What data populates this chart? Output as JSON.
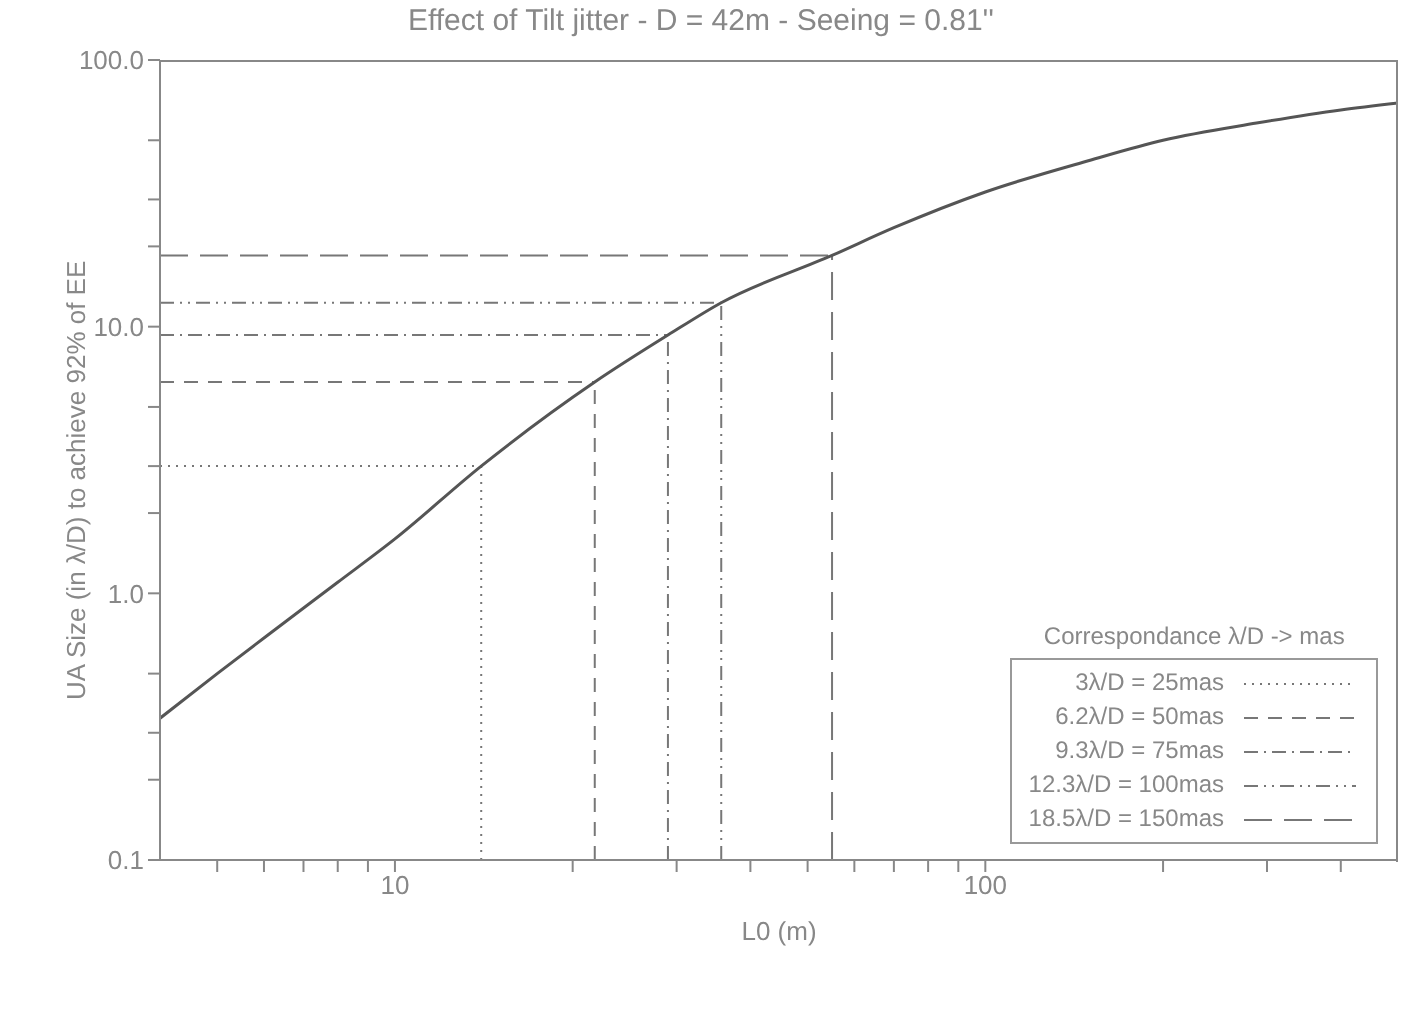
{
  "chart_data": {
    "type": "line",
    "title": "Effect of Tilt jitter - D = 42m - Seeing = 0.81''",
    "xlabel": "L0 (m)",
    "ylabel": "UA Size (in λ/D) to achieve 92% of EE",
    "log": "xy",
    "grid": false,
    "marker": "none",
    "line_style": "solid",
    "legend": "bottom right",
    "legend_title": "Correspondance λ/D -> mas",
    "x": [
      4,
      5,
      6,
      8,
      10,
      14,
      21.8,
      29,
      35.7,
      55,
      70,
      100,
      150,
      200,
      288,
      400,
      500
    ],
    "series": [
      {
        "color": "#555555",
        "values": [
          0.34,
          0.5,
          0.68,
          1.1,
          1.6,
          3,
          6.2,
          9.3,
          12.3,
          18.5,
          23.5,
          32,
          42,
          50,
          58,
          65,
          69
        ]
      }
    ],
    "xlim": [
      4,
      500
    ],
    "xticks": [
      {
        "value": 5,
        "label": null
      },
      {
        "value": 6,
        "label": null
      },
      {
        "value": 7,
        "label": null
      },
      {
        "value": 8,
        "label": null
      },
      {
        "value": 9,
        "label": null
      },
      10,
      {
        "value": 20,
        "label": null
      },
      {
        "value": 30,
        "label": null
      },
      {
        "value": 40,
        "label": null
      },
      {
        "value": 50,
        "label": null
      },
      {
        "value": 60,
        "label": null
      },
      {
        "value": 70,
        "label": null
      },
      {
        "value": 80,
        "label": null
      },
      {
        "value": 90,
        "label": null
      },
      100,
      {
        "value": 200,
        "label": null
      },
      {
        "value": 300,
        "label": null
      },
      {
        "value": 400,
        "label": null
      }
    ],
    "ylim": [
      0.1,
      100
    ],
    "yticks": [
      {
        "value": 0.1,
        "label": "0.1"
      },
      {
        "value": 0.2,
        "label": null
      },
      {
        "value": 0.3,
        "label": null
      },
      {
        "value": 0.5,
        "label": null
      },
      {
        "value": 1,
        "label": "1.0"
      },
      {
        "value": 2,
        "label": null
      },
      {
        "value": 3,
        "label": null
      },
      {
        "value": 5,
        "label": null
      },
      {
        "value": 10,
        "label": "10.0"
      },
      {
        "value": 20,
        "label": null
      },
      {
        "value": 30,
        "label": null
      },
      {
        "value": 50,
        "label": null
      },
      {
        "value": 100,
        "label": "100.0"
      }
    ],
    "ref_lines": [
      {
        "axis": "y",
        "value": 3,
        "label": "3λ/D = 25mas",
        "color": "#777777",
        "line_style": "dotted"
      },
      {
        "axis": "y",
        "value": 6.2,
        "label": "6.2λ/D = 50mas",
        "color": "#777777",
        "line_style": "dashed"
      },
      {
        "axis": "y",
        "value": 9.3,
        "label": "9.3λ/D = 75mas",
        "color": "#777777",
        "line_style": "dashdot"
      },
      {
        "axis": "y",
        "value": 12.3,
        "label": "12.3λ/D = 100mas",
        "color": "#777777",
        "line_style": "dashdotdot"
      },
      {
        "axis": "y",
        "value": 18.5,
        "label": "18.5λ/D = 150mas",
        "color": "#777777",
        "line_style": "longdash"
      },
      {
        "axis": "x",
        "value": 14,
        "color": "#777777",
        "line_style": "dotted"
      },
      {
        "axis": "x",
        "value": 21.8,
        "color": "#777777",
        "line_style": "dashed"
      },
      {
        "axis": "x",
        "value": 29,
        "color": "#777777",
        "line_style": "dashdot"
      },
      {
        "axis": "x",
        "value": 35.7,
        "color": "#777777",
        "line_style": "dashdotdot"
      },
      {
        "axis": "x",
        "value": 55,
        "color": "#777777",
        "line_style": "longdash"
      }
    ]
  }
}
